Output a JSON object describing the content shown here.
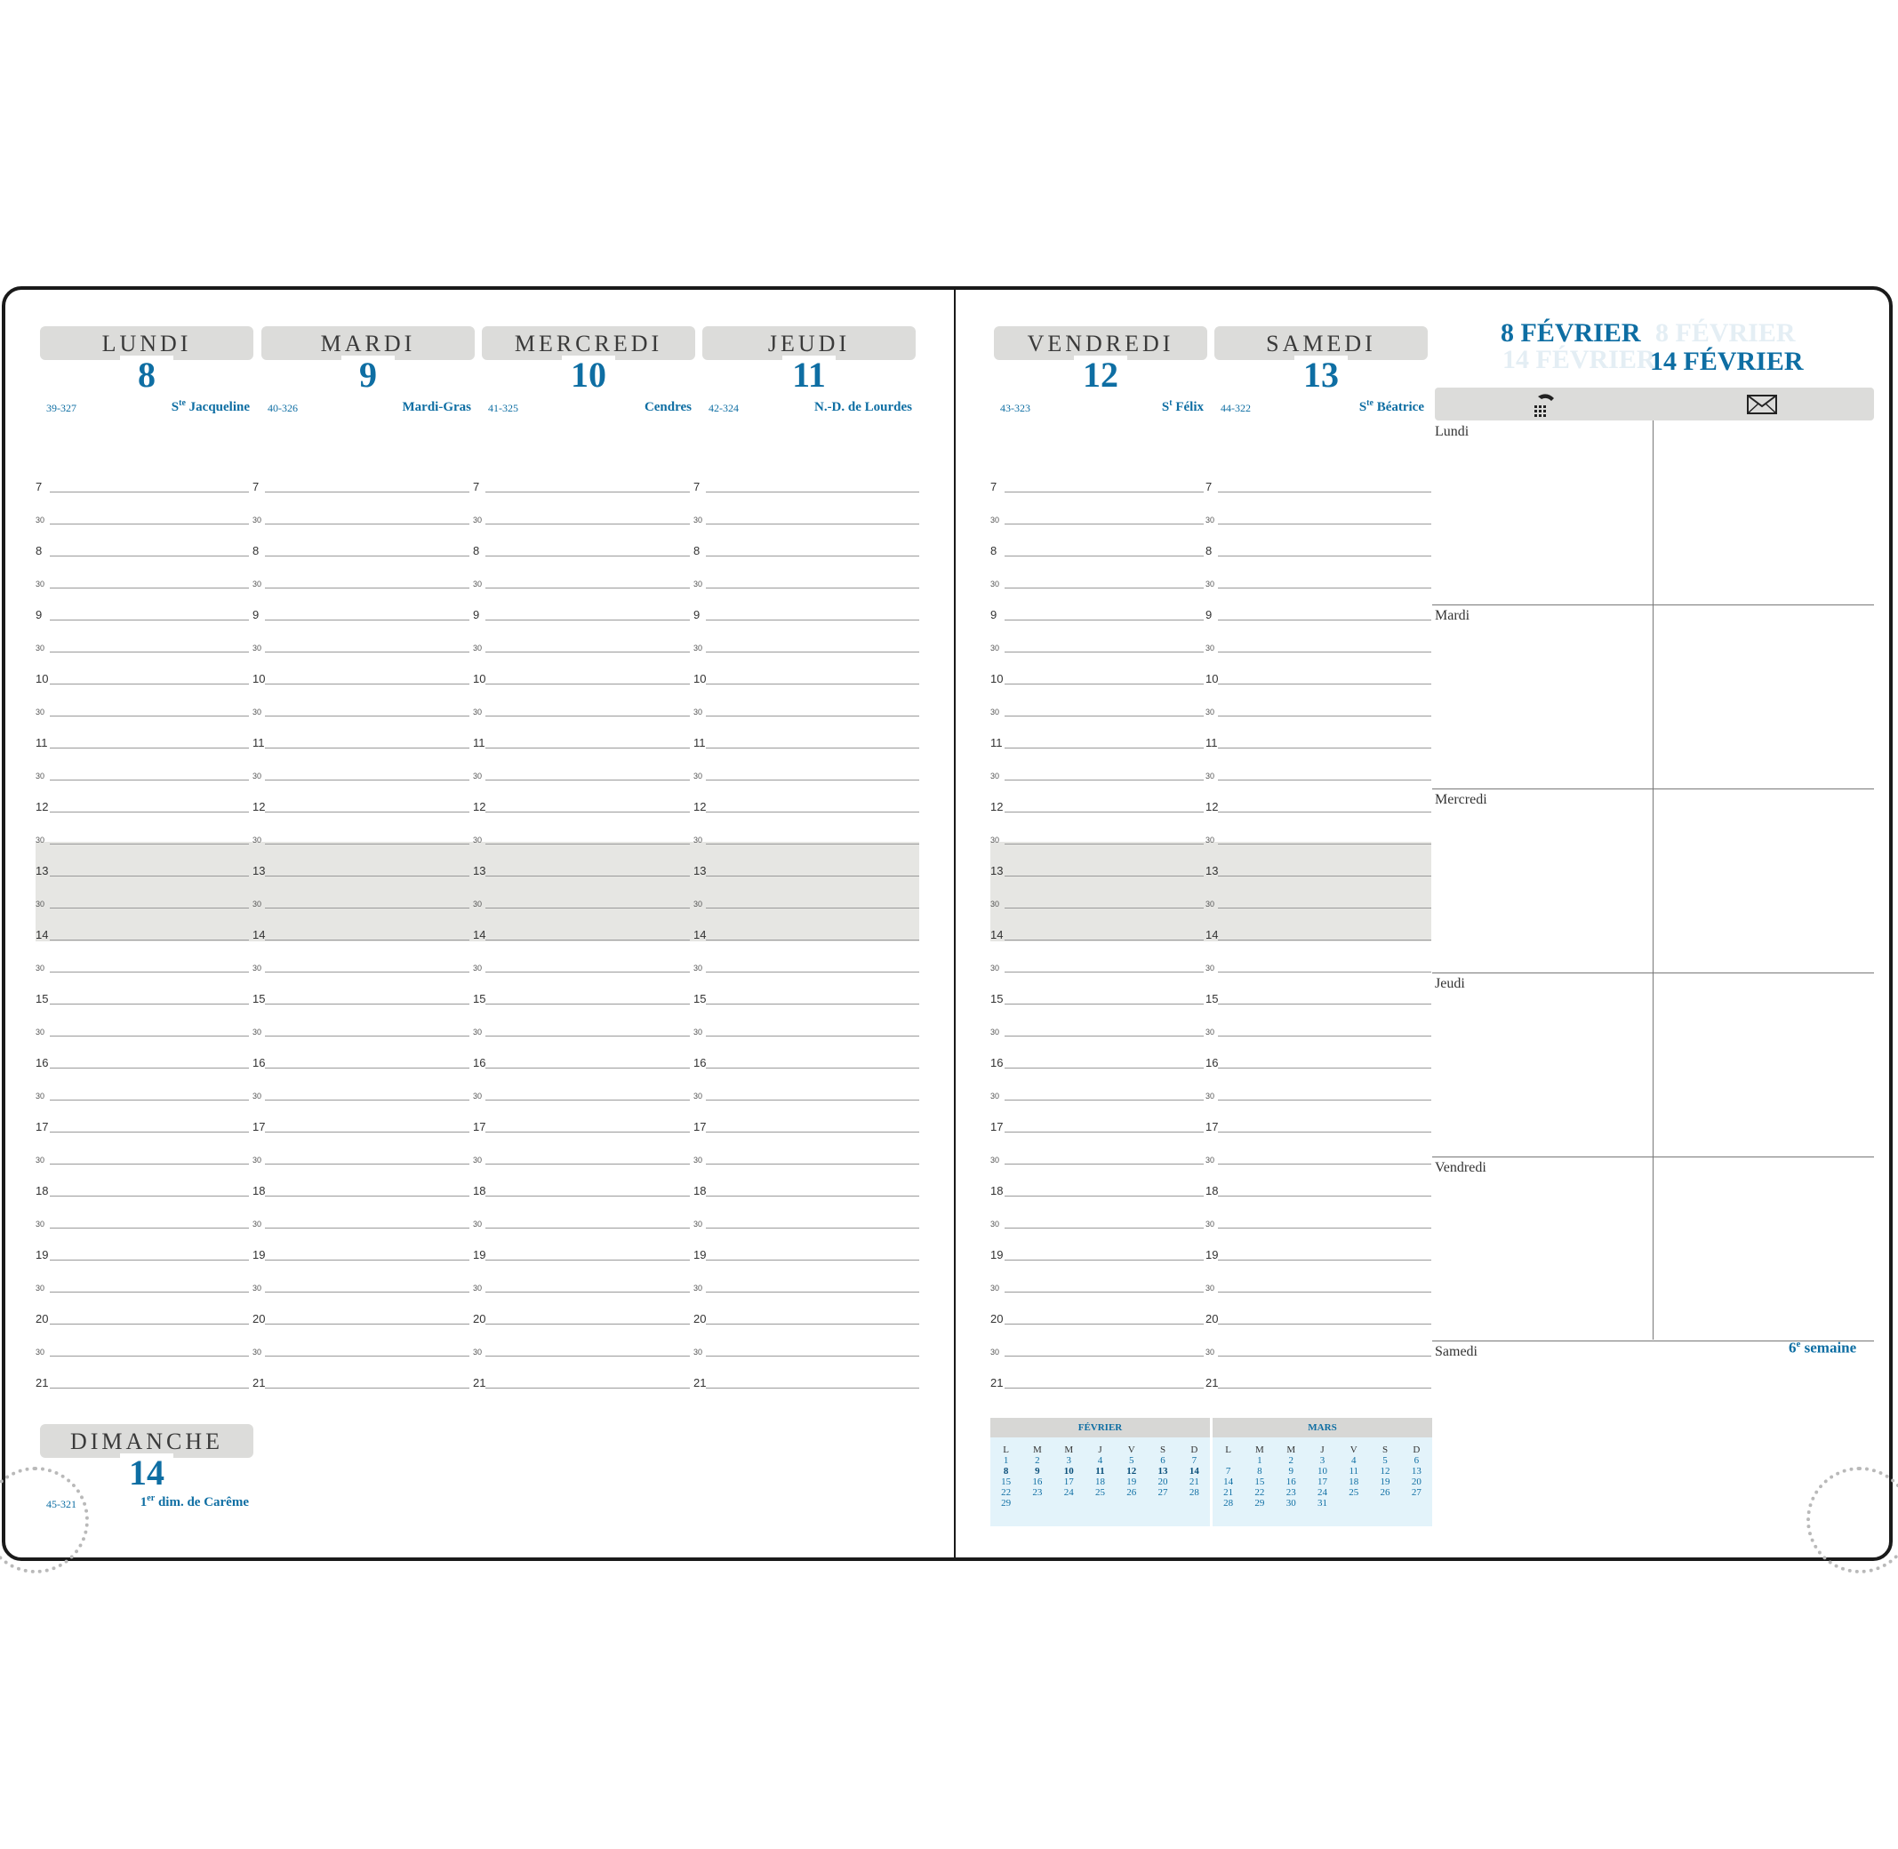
{
  "left_days": [
    {
      "name": "LUNDI",
      "num": "8",
      "code": "39-327",
      "saint_pre": "S",
      "saint_sup": "te",
      "saint": " Jacqueline"
    },
    {
      "name": "MARDI",
      "num": "9",
      "code": "40-326",
      "saint_pre": "",
      "saint_sup": "",
      "saint": "Mardi-Gras"
    },
    {
      "name": "MERCREDI",
      "num": "10",
      "code": "41-325",
      "saint_pre": "",
      "saint_sup": "",
      "saint": "Cendres"
    },
    {
      "name": "JEUDI",
      "num": "11",
      "code": "42-324",
      "saint_pre": "",
      "saint_sup": "",
      "saint": "N.-D. de Lourdes"
    }
  ],
  "right_days": [
    {
      "name": "VENDREDI",
      "num": "12",
      "code": "43-323",
      "saint_pre": "S",
      "saint_sup": "t",
      "saint": " Félix"
    },
    {
      "name": "SAMEDI",
      "num": "13",
      "code": "44-322",
      "saint_pre": "S",
      "saint_sup": "te",
      "saint": " Béatrice"
    }
  ],
  "sunday": {
    "name": "DIMANCHE",
    "num": "14",
    "code": "45-321",
    "saint_pre": "1",
    "saint_sup": "er",
    "saint": " dim. de Carême"
  },
  "hours": [
    "7",
    "30",
    "8",
    "30",
    "9",
    "30",
    "10",
    "30",
    "11",
    "30",
    "12",
    "30",
    "13",
    "30",
    "14",
    "30",
    "15",
    "30",
    "16",
    "30",
    "17",
    "30",
    "18",
    "30",
    "19",
    "30",
    "20",
    "30",
    "21"
  ],
  "week_range": {
    "start": "8 FÉVRIER",
    "end": "14 FÉVRIER"
  },
  "notes": {
    "icons": [
      "phone-icon",
      "envelope-icon"
    ],
    "rows": [
      "Lundi",
      "Mardi",
      "Mercredi",
      "Jeudi",
      "Vendredi",
      "Samedi"
    ],
    "week_label_num": "6",
    "week_label_sup": "e",
    "week_label_text": " semaine"
  },
  "mini_calendars": [
    {
      "month": "FÉVRIER",
      "headers": [
        "L",
        "M",
        "M",
        "J",
        "V",
        "S",
        "D"
      ],
      "rows": [
        [
          "1",
          "2",
          "3",
          "4",
          "5",
          "6",
          "7"
        ],
        [
          "8",
          "9",
          "10",
          "11",
          "12",
          "13",
          "14"
        ],
        [
          "15",
          "16",
          "17",
          "18",
          "19",
          "20",
          "21"
        ],
        [
          "22",
          "23",
          "24",
          "25",
          "26",
          "27",
          "28"
        ],
        [
          "29",
          "",
          "",
          "",
          "",
          "",
          ""
        ]
      ],
      "bold_row": 1
    },
    {
      "month": "MARS",
      "headers": [
        "L",
        "M",
        "M",
        "J",
        "V",
        "S",
        "D"
      ],
      "rows": [
        [
          "",
          "1",
          "2",
          "3",
          "4",
          "5",
          "6"
        ],
        [
          "7",
          "8",
          "9",
          "10",
          "11",
          "12",
          "13"
        ],
        [
          "14",
          "15",
          "16",
          "17",
          "18",
          "19",
          "20"
        ],
        [
          "21",
          "22",
          "23",
          "24",
          "25",
          "26",
          "27"
        ],
        [
          "28",
          "29",
          "30",
          "31",
          "",
          "",
          ""
        ]
      ],
      "bold_row": -1
    }
  ],
  "colors": {
    "accent": "#0e6ea3",
    "header_bg": "#dcdcda",
    "mini_bg": "#e3f3fa"
  }
}
